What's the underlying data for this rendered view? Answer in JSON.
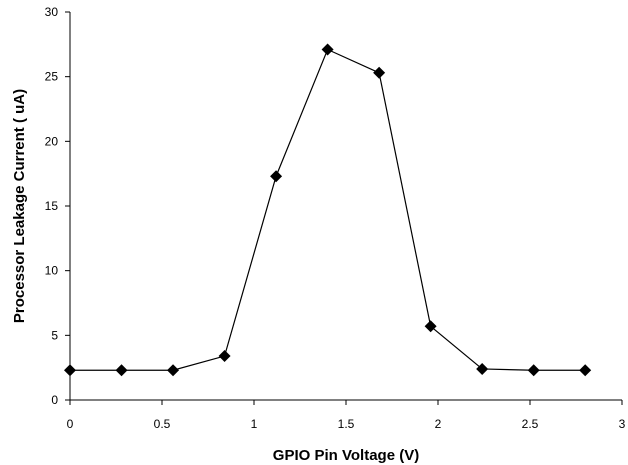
{
  "chart_data": {
    "type": "line",
    "title": "",
    "xlabel": "GPIO Pin Voltage (V)",
    "ylabel": "Processor Leakage Current ( uA)",
    "xlim": [
      0,
      3
    ],
    "ylim": [
      0,
      30
    ],
    "x_ticks": [
      0,
      0.5,
      1,
      1.5,
      2,
      2.5,
      3
    ],
    "y_ticks": [
      0,
      5,
      10,
      15,
      20,
      25,
      30
    ],
    "x_tick_labels": [
      "0",
      "0.5",
      "1",
      "1.5",
      "2",
      "2.5",
      "3"
    ],
    "y_tick_labels": [
      "0",
      "5",
      "10",
      "15",
      "20",
      "25",
      "30"
    ],
    "grid": false,
    "legend": "none",
    "marker": "diamond",
    "colors": {
      "line": "#000000",
      "marker": "#000000",
      "axis": "#000000"
    },
    "series": [
      {
        "x": [
          0,
          0.28,
          0.56,
          0.84,
          1.12,
          1.4,
          1.68,
          1.96,
          2.24,
          2.52,
          2.8
        ],
        "y": [
          2.3,
          2.3,
          2.3,
          3.4,
          17.3,
          27.1,
          25.3,
          5.7,
          2.4,
          2.3,
          2.3
        ]
      }
    ]
  }
}
